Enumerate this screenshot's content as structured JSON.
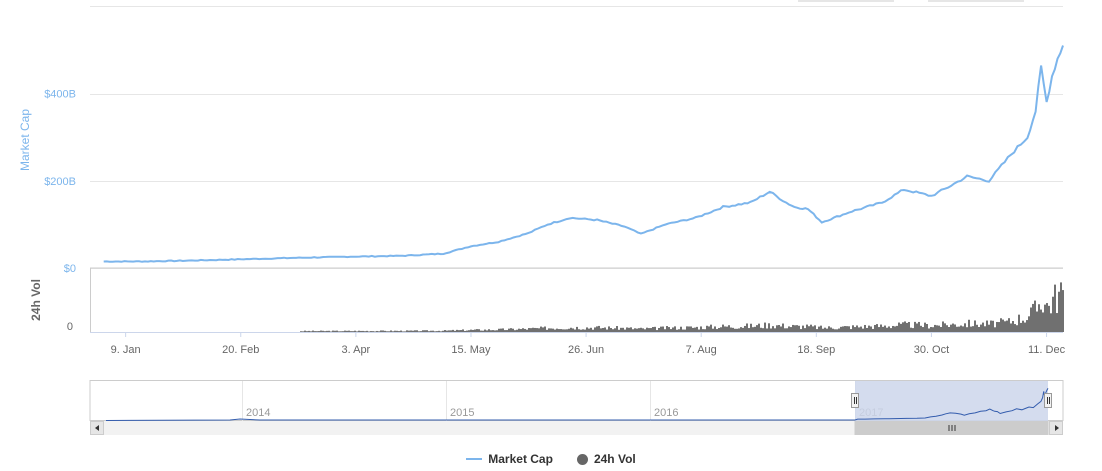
{
  "chart_data": {
    "type": "line",
    "title": "",
    "x_ticks": [
      "9. Jan",
      "20. Feb",
      "3. Apr",
      "15. May",
      "26. Jun",
      "7. Aug",
      "18. Sep",
      "30. Oct",
      "11. Dec"
    ],
    "market_cap": {
      "ylabel": "Market Cap",
      "ytick_labels": [
        "$0",
        "$200B",
        "$400B"
      ],
      "ylim": [
        0,
        580
      ],
      "unit": "B USD",
      "grid": true,
      "x": [
        "2017-01-01",
        "2017-01-15",
        "2017-02-01",
        "2017-02-20",
        "2017-03-10",
        "2017-04-01",
        "2017-04-20",
        "2017-05-05",
        "2017-05-15",
        "2017-05-25",
        "2017-06-05",
        "2017-06-12",
        "2017-06-20",
        "2017-06-30",
        "2017-07-10",
        "2017-07-16",
        "2017-07-25",
        "2017-08-05",
        "2017-08-15",
        "2017-08-25",
        "2017-09-01",
        "2017-09-07",
        "2017-09-10",
        "2017-09-15",
        "2017-09-20",
        "2017-10-01",
        "2017-10-12",
        "2017-10-20",
        "2017-10-30",
        "2017-11-05",
        "2017-11-12",
        "2017-11-20",
        "2017-11-28",
        "2017-12-04",
        "2017-12-07",
        "2017-12-09",
        "2017-12-11",
        "2017-12-13",
        "2017-12-15",
        "2017-12-17"
      ],
      "values": [
        15,
        15,
        17,
        20,
        23,
        26,
        28,
        33,
        50,
        60,
        80,
        100,
        115,
        110,
        95,
        78,
        100,
        115,
        140,
        150,
        175,
        150,
        140,
        135,
        105,
        130,
        150,
        180,
        165,
        185,
        210,
        200,
        260,
        300,
        360,
        460,
        380,
        440,
        480,
        510
      ]
    },
    "volume": {
      "ylabel": "24h Vol",
      "ytick_labels": [
        "0"
      ],
      "ylim": [
        0,
        30
      ],
      "unit": "B USD"
    },
    "navigator": {
      "year_labels": [
        "2014",
        "2015",
        "2016",
        "2017"
      ],
      "selected_range": [
        "2017-01-01",
        "2017-12-17"
      ]
    },
    "legend": [
      {
        "name": "Market Cap",
        "color": "#7cb5ec"
      },
      {
        "name": "24h Vol",
        "color": "#666666"
      }
    ],
    "legend_position": "bottom-center",
    "colors": {
      "market_cap": "#7cb5ec",
      "volume": "#707070",
      "navigator_fill": "#ccd6eb",
      "navigator_line": "#335cad"
    }
  }
}
